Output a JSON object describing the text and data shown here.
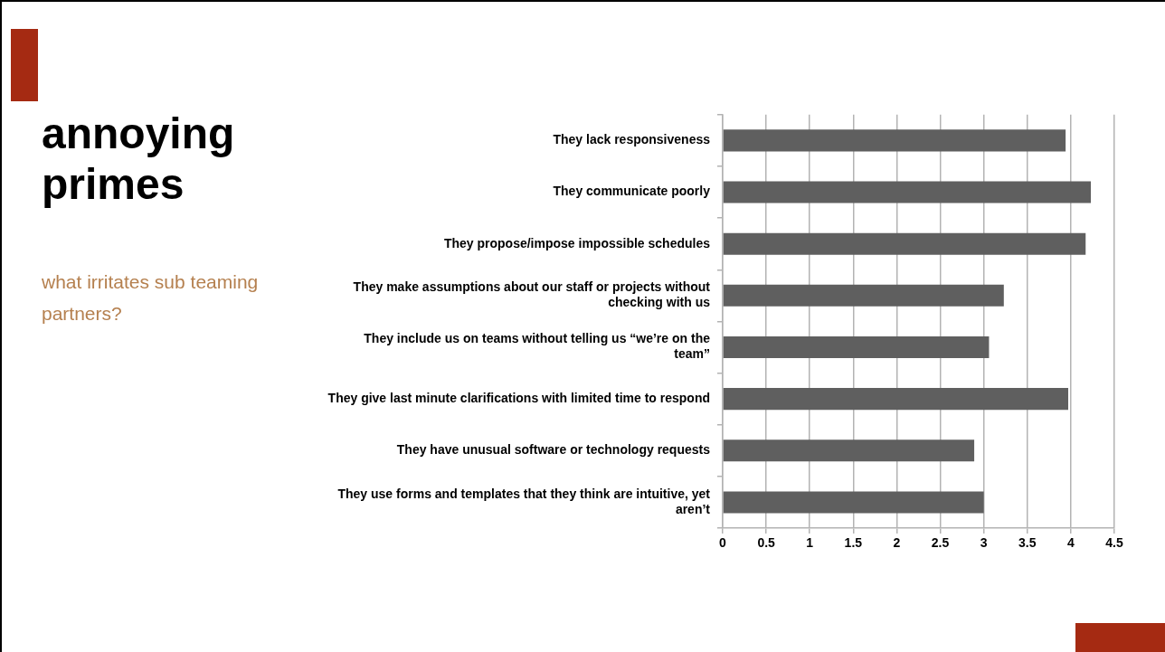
{
  "chart_data": {
    "type": "bar",
    "orientation": "horizontal",
    "title": "annoying primes",
    "subtitle": "what irritates sub teaming partners?",
    "categories": [
      "They lack responsiveness",
      "They communicate poorly",
      "They propose/impose impossible schedules",
      "They make assumptions about our staff or projects without checking with us",
      "They include us on teams without telling us “we’re on the team”",
      "They give last minute clarifications with limited time to respond",
      "They have unusual software or technology requests",
      "They use forms and templates that they think are intuitive, yet aren’t"
    ],
    "values": [
      3.94,
      4.23,
      4.17,
      3.23,
      3.06,
      3.97,
      2.89,
      3.0
    ],
    "color": "#5f5f5f",
    "xlim": [
      0,
      4.5
    ],
    "xticks": [
      0,
      0.5,
      1,
      1.5,
      2,
      2.5,
      3,
      3.5,
      4,
      4.5
    ],
    "grid": "x",
    "legend": false
  }
}
